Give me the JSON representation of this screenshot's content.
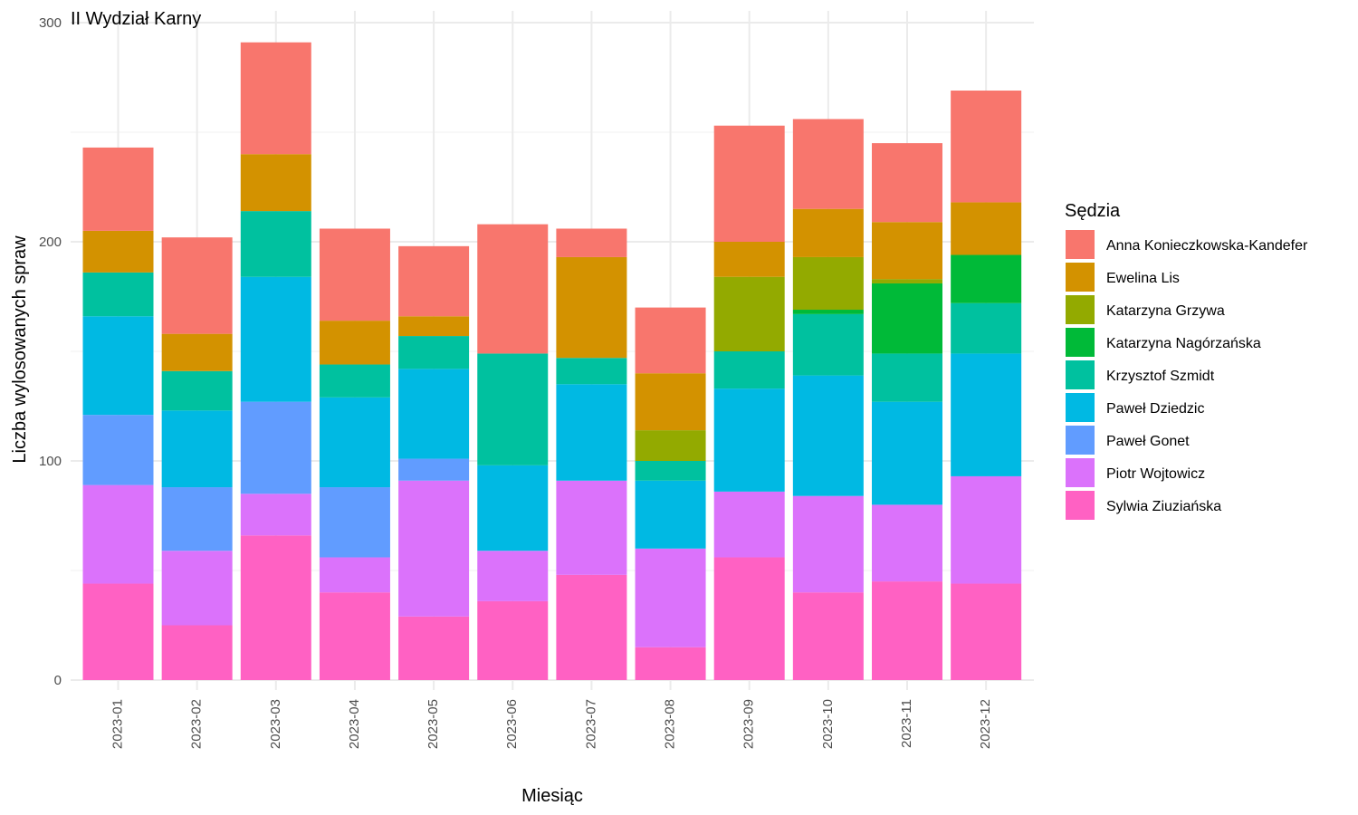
{
  "chart_data": {
    "type": "bar",
    "stacked": true,
    "title": "II Wydział Karny",
    "xlabel": "Miesiąc",
    "ylabel": "Liczba wylosowanych spraw",
    "ylim": [
      0,
      300
    ],
    "yticks": [
      0,
      100,
      200,
      300
    ],
    "grid": true,
    "legend_position": "right",
    "legend_title": "Sędzia",
    "categories": [
      "2023-01",
      "2023-02",
      "2023-03",
      "2023-04",
      "2023-05",
      "2023-06",
      "2023-07",
      "2023-08",
      "2023-09",
      "2023-10",
      "2023-11",
      "2023-12"
    ],
    "series": [
      {
        "name": "Anna Konieczkowska-Kandefer",
        "color": "#F8766D",
        "values": [
          38,
          44,
          51,
          42,
          32,
          59,
          13,
          30,
          53,
          41,
          36,
          51
        ]
      },
      {
        "name": "Ewelina Lis",
        "color": "#D39200",
        "values": [
          19,
          17,
          26,
          20,
          9,
          0,
          46,
          26,
          16,
          22,
          26,
          24
        ]
      },
      {
        "name": "Katarzyna Grzywa",
        "color": "#93AA00",
        "values": [
          0,
          0,
          0,
          0,
          0,
          0,
          0,
          14,
          34,
          24,
          2,
          0
        ]
      },
      {
        "name": "Katarzyna Nagórzańska",
        "color": "#00BA38",
        "values": [
          0,
          0,
          0,
          0,
          0,
          0,
          0,
          0,
          0,
          2,
          32,
          22
        ]
      },
      {
        "name": "Krzysztof Szmidt",
        "color": "#00C19F",
        "values": [
          20,
          18,
          30,
          15,
          15,
          51,
          12,
          9,
          17,
          28,
          22,
          23
        ]
      },
      {
        "name": "Paweł Dziedzic",
        "color": "#00B9E3",
        "values": [
          45,
          35,
          57,
          41,
          41,
          39,
          44,
          31,
          47,
          55,
          47,
          56
        ]
      },
      {
        "name": "Paweł Gonet",
        "color": "#619CFF",
        "values": [
          32,
          29,
          42,
          32,
          10,
          0,
          0,
          0,
          0,
          0,
          0,
          0
        ]
      },
      {
        "name": "Piotr Wojtowicz",
        "color": "#DB72FB",
        "values": [
          45,
          34,
          19,
          16,
          62,
          23,
          43,
          45,
          30,
          44,
          35,
          49
        ]
      },
      {
        "name": "Sylwia Ziuziańska",
        "color": "#FF61C3",
        "values": [
          44,
          25,
          66,
          40,
          29,
          36,
          48,
          15,
          56,
          40,
          45,
          44
        ]
      }
    ]
  }
}
